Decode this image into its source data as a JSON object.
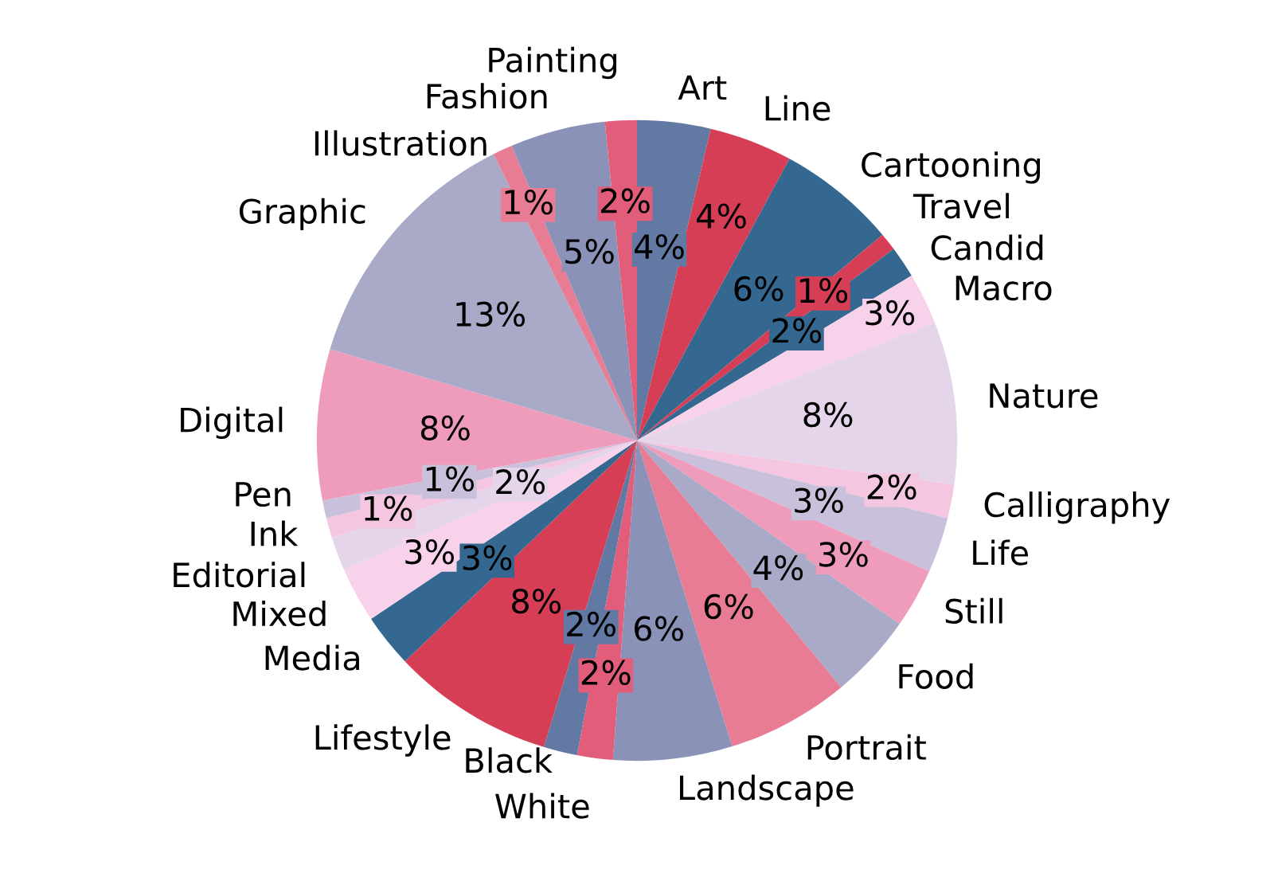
{
  "chart_data": {
    "type": "pie",
    "categories": [
      "Art",
      "Line",
      "Cartooning",
      "Travel",
      "Candid",
      "Macro",
      "Nature",
      "Calligraphy",
      "Life",
      "Still",
      "Food",
      "Portrait",
      "Landscape",
      "White",
      "Black",
      "Lifestyle",
      "Media",
      "Mixed",
      "Editorial",
      "Ink",
      "Pen",
      "Digital",
      "Graphic",
      "Illustration",
      "Fashion",
      "Painting"
    ],
    "values": [
      3.7,
      4.2,
      6.0,
      0.9,
      1.6,
      2.6,
      8.2,
      1.7,
      2.8,
      3.0,
      4.3,
      6.2,
      6.0,
      1.8,
      1.7,
      8.2,
      2.7,
      2.8,
      1.7,
      1.0,
      0.9,
      7.6,
      13.0,
      1.0,
      4.8,
      1.6
    ],
    "value_labels": [
      "4%",
      "4%",
      "6%",
      "1%",
      "2%",
      "3%",
      "8%",
      "2%",
      "3%",
      "3%",
      "4%",
      "6%",
      "6%",
      "2%",
      "2%",
      "8%",
      "3%",
      "3%",
      "2%",
      "1%",
      "1%",
      "8%",
      "13%",
      "1%",
      "5%",
      "2%"
    ],
    "colors": [
      "#6279a3",
      "#d63e55",
      "#356890",
      "#d63e55",
      "#356890",
      "#f7d2ea",
      "#e4d5ea",
      "#f5c6e0",
      "#c9c0dc",
      "#ef9bbb",
      "#a9a9c8",
      "#e77c94",
      "#8a92b8",
      "#e25d7a",
      "#6279a3",
      "#d63e55",
      "#356890",
      "#f7d2ea",
      "#e4d5ea",
      "#f5c6e0",
      "#c9c0dc",
      "#ef9bbb",
      "#a9a9c8",
      "#e77c94",
      "#8a92b8",
      "#e25d7a"
    ]
  }
}
